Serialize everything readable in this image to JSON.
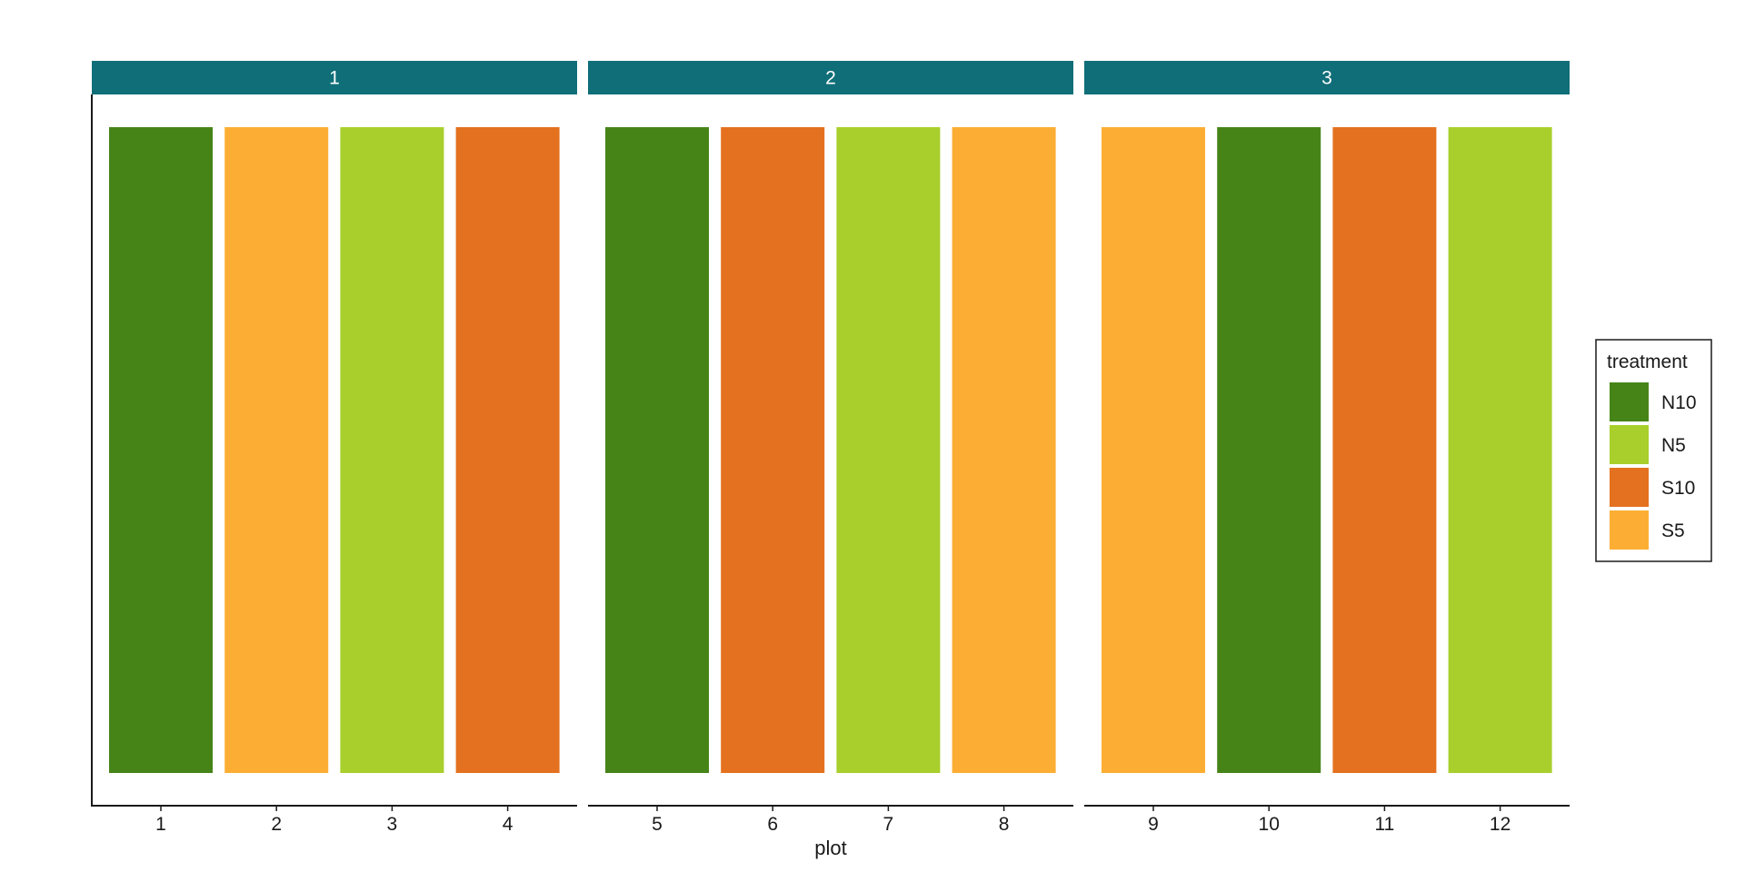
{
  "chart_data": {
    "type": "bar",
    "facet_variable": "block",
    "facets": [
      {
        "label": "1",
        "plots": [
          {
            "x": "1",
            "treatment": "N10",
            "value": 1
          },
          {
            "x": "2",
            "treatment": "S5",
            "value": 1
          },
          {
            "x": "3",
            "treatment": "N5",
            "value": 1
          },
          {
            "x": "4",
            "treatment": "S10",
            "value": 1
          }
        ]
      },
      {
        "label": "2",
        "plots": [
          {
            "x": "5",
            "treatment": "N10",
            "value": 1
          },
          {
            "x": "6",
            "treatment": "S10",
            "value": 1
          },
          {
            "x": "7",
            "treatment": "N5",
            "value": 1
          },
          {
            "x": "8",
            "treatment": "S5",
            "value": 1
          }
        ]
      },
      {
        "label": "3",
        "plots": [
          {
            "x": "9",
            "treatment": "S5",
            "value": 1
          },
          {
            "x": "10",
            "treatment": "N10",
            "value": 1
          },
          {
            "x": "11",
            "treatment": "S10",
            "value": 1
          },
          {
            "x": "12",
            "treatment": "N5",
            "value": 1
          }
        ]
      }
    ],
    "xlabel": "plot",
    "ylabel": "",
    "ylim": [
      0,
      1
    ],
    "y_axis_shown": false,
    "grid": false,
    "legend": {
      "title": "treatment",
      "position": "right",
      "entries": [
        {
          "label": "N10",
          "color": "#468418"
        },
        {
          "label": "N5",
          "color": "#A8CF2C"
        },
        {
          "label": "S10",
          "color": "#E4711F"
        },
        {
          "label": "S5",
          "color": "#FCAE34"
        }
      ]
    },
    "strip_color": "#0F6E78"
  }
}
